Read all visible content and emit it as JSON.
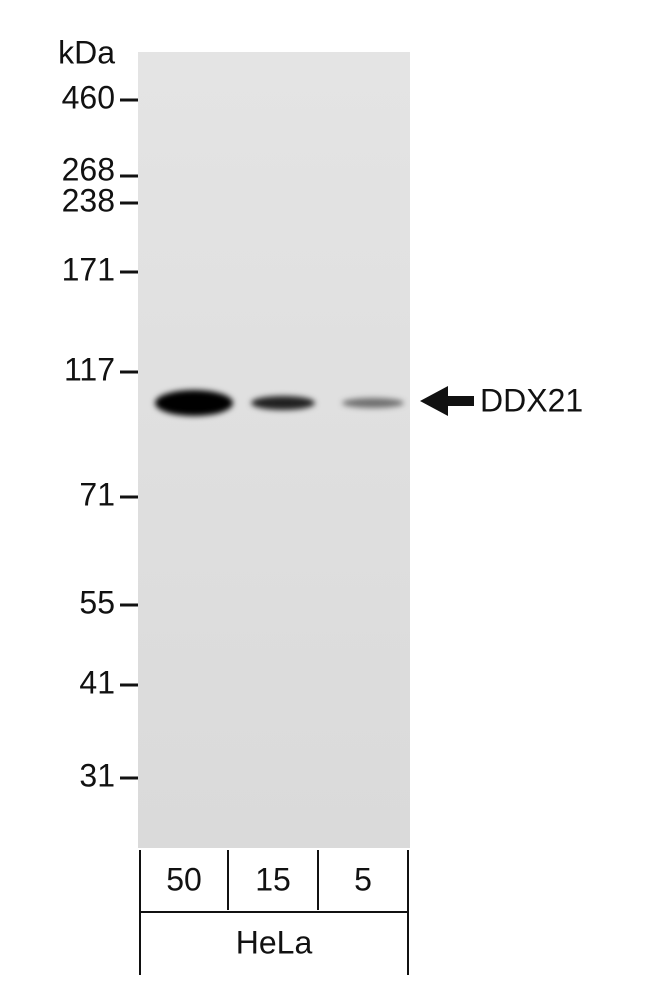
{
  "markers": {
    "unit": "kDa",
    "labels": [
      "460",
      "268",
      "238",
      "171",
      "117",
      "71",
      "55",
      "41",
      "31"
    ]
  },
  "band_label": "DDX21",
  "lanes": [
    "50",
    "15",
    "5"
  ],
  "sample": "HeLa"
}
